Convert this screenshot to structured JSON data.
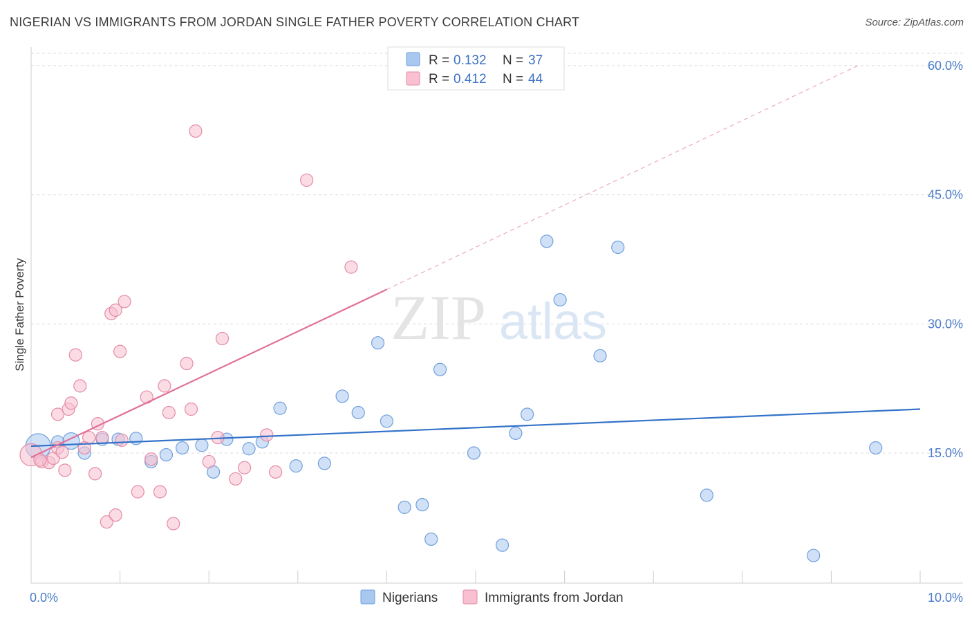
{
  "header": {
    "title": "NIGERIAN VS IMMIGRANTS FROM JORDAN SINGLE FATHER POVERTY CORRELATION CHART",
    "source": "Source: ZipAtlas.com"
  },
  "watermark": {
    "zip": "ZIP",
    "atlas": "atlas"
  },
  "legend": {
    "r_label": "R =",
    "n_label": "N =",
    "rows": [
      {
        "r": "0.132",
        "n": "37",
        "color": "#a9c8f0",
        "stroke": "#6f9fdc"
      },
      {
        "r": "0.412",
        "n": "44",
        "color": "#f8c0d0",
        "stroke": "#e58aa5"
      }
    ]
  },
  "chart_data": {
    "type": "scatter",
    "title": "NIGERIAN VS IMMIGRANTS FROM JORDAN SINGLE FATHER POVERTY CORRELATION CHART",
    "xlabel": "",
    "ylabel": "Single Father Poverty",
    "xlim": [
      0,
      10
    ],
    "ylim": [
      1.5,
      62
    ],
    "x_tick_labels": [
      "0.0%",
      "10.0%"
    ],
    "y_tick_labels": [
      "15.0%",
      "30.0%",
      "45.0%",
      "60.0%"
    ],
    "y_ticks": [
      15,
      30,
      45,
      60
    ],
    "grid": "horizontal dashed",
    "legend_position": "top-center and bottom",
    "series": [
      {
        "name": "Nigerians",
        "color": "#a9c8f0",
        "stroke": "#6f9fdc",
        "line_color": "#3373c9",
        "trend": {
          "x": [
            0,
            10
          ],
          "y": [
            15.8,
            20.1
          ],
          "dashed_x_from": null
        },
        "points": [
          [
            0.08,
            15.8,
            18
          ],
          [
            0.45,
            16.4,
            12
          ],
          [
            0.6,
            15.0,
            9
          ],
          [
            0.8,
            16.6,
            9
          ],
          [
            0.98,
            16.6,
            9
          ],
          [
            1.18,
            16.7,
            9
          ],
          [
            1.35,
            14.0,
            9
          ],
          [
            1.52,
            14.8,
            9
          ],
          [
            1.7,
            15.6,
            9
          ],
          [
            1.92,
            15.9,
            9
          ],
          [
            2.05,
            12.8,
            9
          ],
          [
            2.2,
            16.6,
            9
          ],
          [
            2.45,
            15.5,
            9
          ],
          [
            2.6,
            16.3,
            9
          ],
          [
            2.8,
            20.2,
            9
          ],
          [
            2.98,
            13.5,
            9
          ],
          [
            3.3,
            13.8,
            9
          ],
          [
            3.5,
            21.6,
            9
          ],
          [
            3.68,
            19.7,
            9
          ],
          [
            3.9,
            27.8,
            9
          ],
          [
            4.0,
            18.7,
            9
          ],
          [
            4.2,
            8.7,
            9
          ],
          [
            4.4,
            9.0,
            9
          ],
          [
            4.5,
            5.0,
            9
          ],
          [
            4.6,
            24.7,
            9
          ],
          [
            4.98,
            15.0,
            9
          ],
          [
            5.3,
            4.3,
            9
          ],
          [
            5.45,
            17.3,
            9
          ],
          [
            5.58,
            19.5,
            9
          ],
          [
            5.8,
            39.6,
            9
          ],
          [
            5.95,
            32.8,
            9
          ],
          [
            6.4,
            26.3,
            9
          ],
          [
            6.6,
            38.9,
            9
          ],
          [
            7.6,
            10.1,
            9
          ],
          [
            8.8,
            3.1,
            9
          ],
          [
            9.5,
            15.6,
            9
          ],
          [
            0.3,
            16.3,
            9
          ]
        ]
      },
      {
        "name": "Immigrants from Jordan",
        "color": "#f8c0d0",
        "stroke": "#e58aa5",
        "line_color": "#e07099",
        "trend": {
          "x": [
            0,
            4.0
          ],
          "y": [
            14.5,
            34.0
          ],
          "dashed_x": [
            4.0,
            9.3
          ],
          "dashed_y": [
            34.0,
            60.0
          ]
        },
        "points": [
          [
            0.0,
            14.8,
            16
          ],
          [
            0.12,
            14.0,
            9
          ],
          [
            0.2,
            13.9,
            9
          ],
          [
            0.25,
            14.4,
            9
          ],
          [
            0.3,
            15.6,
            9
          ],
          [
            0.3,
            19.5,
            9
          ],
          [
            0.35,
            15.1,
            9
          ],
          [
            0.38,
            13.0,
            9
          ],
          [
            0.42,
            20.1,
            9
          ],
          [
            0.45,
            20.8,
            9
          ],
          [
            0.5,
            26.4,
            9
          ],
          [
            0.55,
            22.8,
            9
          ],
          [
            0.65,
            16.8,
            9
          ],
          [
            0.72,
            12.6,
            9
          ],
          [
            0.75,
            18.4,
            9
          ],
          [
            0.8,
            16.8,
            9
          ],
          [
            0.85,
            7.0,
            9
          ],
          [
            0.9,
            31.2,
            9
          ],
          [
            0.95,
            7.8,
            9
          ],
          [
            0.95,
            31.6,
            9
          ],
          [
            1.0,
            26.8,
            9
          ],
          [
            1.05,
            32.6,
            9
          ],
          [
            1.02,
            16.5,
            9
          ],
          [
            1.2,
            10.5,
            9
          ],
          [
            1.3,
            21.5,
            9
          ],
          [
            1.35,
            14.3,
            9
          ],
          [
            1.45,
            10.5,
            9
          ],
          [
            1.5,
            22.8,
            9
          ],
          [
            1.55,
            19.7,
            9
          ],
          [
            1.6,
            6.8,
            9
          ],
          [
            1.75,
            25.4,
            9
          ],
          [
            1.8,
            20.1,
            9
          ],
          [
            2.0,
            14.0,
            9
          ],
          [
            2.1,
            16.8,
            9
          ],
          [
            2.15,
            28.3,
            9
          ],
          [
            1.85,
            52.4,
            9
          ],
          [
            2.3,
            12.0,
            9
          ],
          [
            2.4,
            13.3,
            9
          ],
          [
            2.65,
            17.1,
            9
          ],
          [
            2.75,
            12.8,
            9
          ],
          [
            3.1,
            46.7,
            9
          ],
          [
            3.6,
            36.6,
            9
          ],
          [
            0.6,
            15.6,
            9
          ],
          [
            0.1,
            14.2,
            9
          ]
        ]
      }
    ]
  },
  "bottom_legend": [
    {
      "label": "Nigerians",
      "color": "#a9c8f0",
      "stroke": "#6f9fdc"
    },
    {
      "label": "Immigrants from Jordan",
      "color": "#f8c0d0",
      "stroke": "#e58aa5"
    }
  ]
}
